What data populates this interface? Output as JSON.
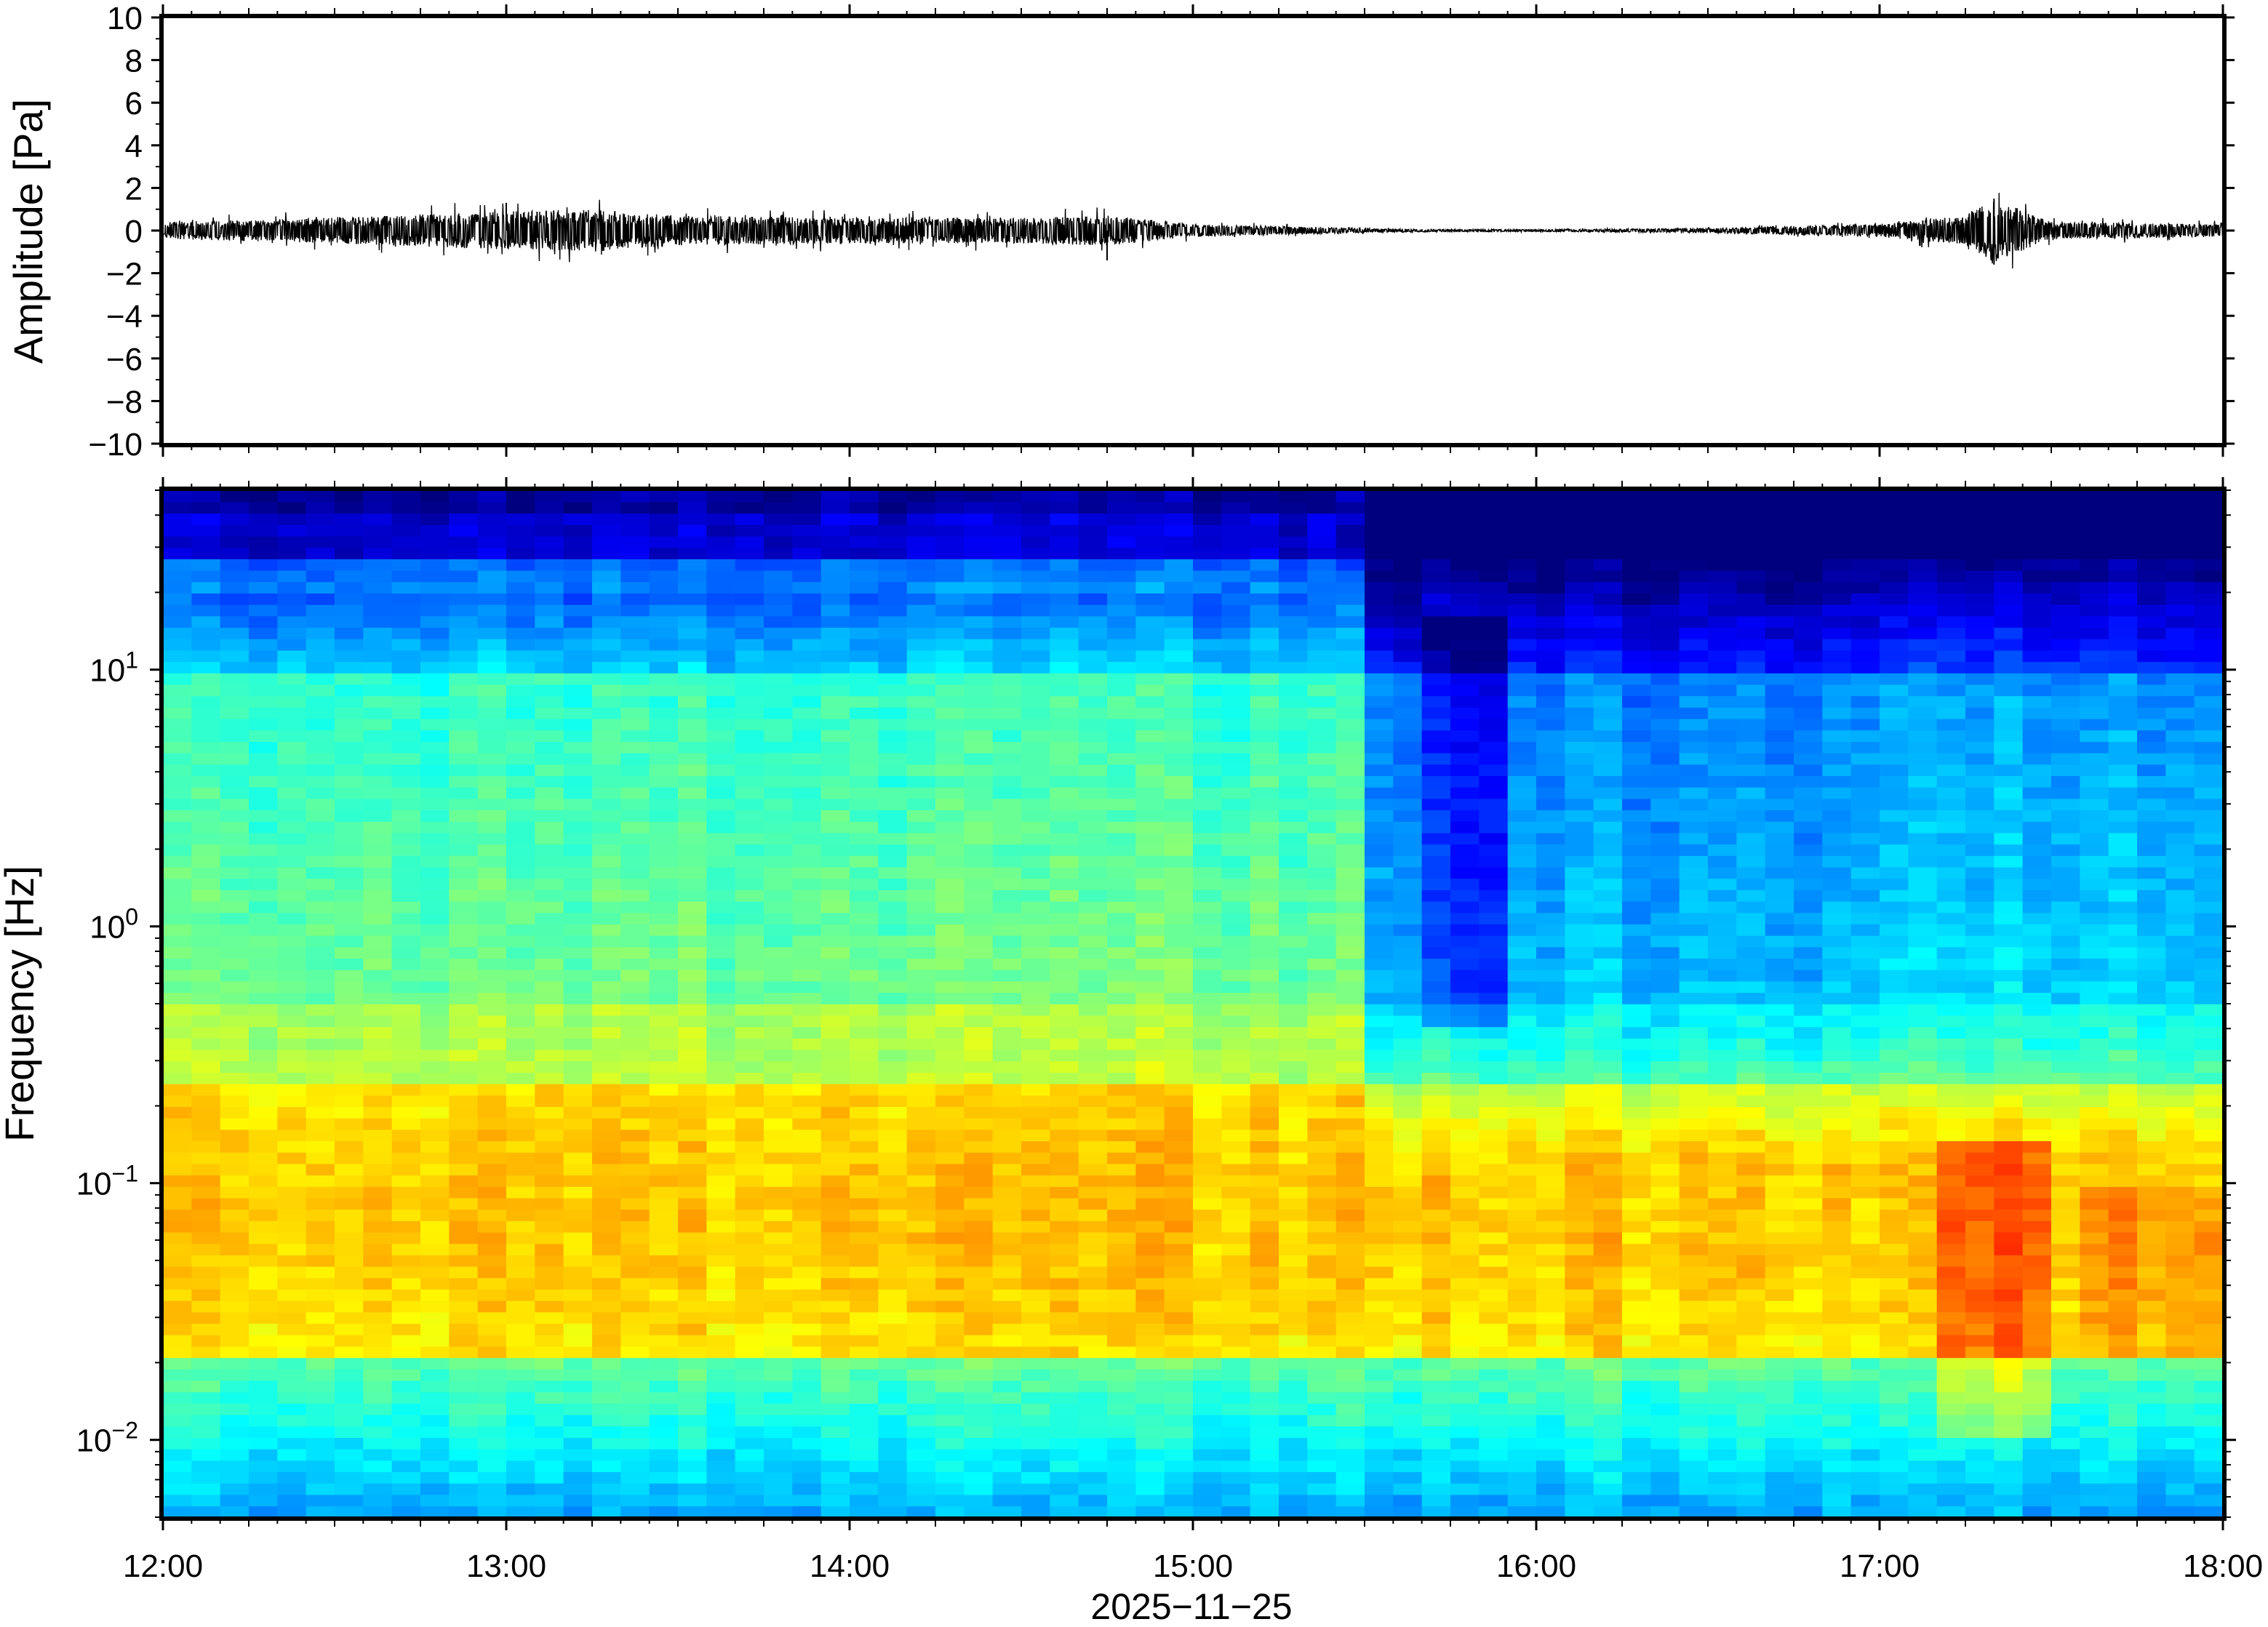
{
  "chart_data": [
    {
      "type": "line",
      "panel": "waveform",
      "ylabel": "Amplitude [Pa]",
      "ylim": [
        -10,
        10
      ],
      "yticks": [
        "10",
        "8",
        "6",
        "4",
        "2",
        "0",
        "−2",
        "−4",
        "−6",
        "−8",
        "−10"
      ],
      "ytick_values": [
        10,
        8,
        6,
        4,
        2,
        0,
        -2,
        -4,
        -6,
        -8,
        -10
      ],
      "xlim": [
        "12:00",
        "18:00"
      ],
      "series": [
        {
          "color": "#000000",
          "envelope_times": [
            "12:00",
            "12:30",
            "13:00",
            "13:15",
            "13:30",
            "14:00",
            "14:30",
            "14:45",
            "15:00",
            "15:30",
            "15:45",
            "16:00",
            "16:30",
            "17:00",
            "17:15",
            "17:20",
            "17:30",
            "18:00"
          ],
          "envelope_amplitude": [
            0.4,
            0.6,
            0.9,
            1.0,
            0.7,
            0.6,
            0.6,
            0.7,
            0.3,
            0.1,
            0.05,
            0.05,
            0.1,
            0.3,
            0.7,
            1.5,
            0.4,
            0.3
          ],
          "notable_peaks": [
            {
              "time": "13:00",
              "value": 1.3
            },
            {
              "time": "14:45",
              "value": -1.4
            },
            {
              "time": "17:20",
              "value": 1.5
            },
            {
              "time": "17:20",
              "value": -1.6
            }
          ]
        }
      ]
    },
    {
      "type": "heatmap",
      "panel": "spectrogram",
      "ylabel": "Frequency [Hz]",
      "xlabel": "2025−11−25",
      "yscale": "log",
      "ylim": [
        0.005,
        50
      ],
      "yticks": [
        {
          "value": 10,
          "base": "10",
          "exp": "1"
        },
        {
          "value": 1,
          "base": "10",
          "exp": "0"
        },
        {
          "value": 0.1,
          "base": "10",
          "exp": "−1"
        },
        {
          "value": 0.01,
          "base": "10",
          "exp": "−2"
        }
      ],
      "xticks": [
        "12:00",
        "13:00",
        "14:00",
        "15:00",
        "16:00",
        "17:00",
        "18:00"
      ],
      "xlim": [
        "12:00",
        "18:00"
      ],
      "colormap": "jet",
      "colormap_stops": [
        "#00007f",
        "#0000ff",
        "#007fff",
        "#00ffff",
        "#7fff7f",
        "#ffff00",
        "#ff7f00",
        "#ff0000"
      ],
      "features": [
        {
          "label": "broadband energy",
          "time_range": [
            "12:00",
            "15:30"
          ],
          "freq_range": [
            0.02,
            3
          ]
        },
        {
          "label": "quiet interval",
          "time_range": [
            "15:40",
            "16:00"
          ],
          "freq_range": [
            0.3,
            15
          ]
        },
        {
          "label": "low-frequency burst",
          "time_range": [
            "17:10",
            "17:30"
          ],
          "freq_range": [
            0.01,
            0.15
          ]
        }
      ]
    }
  ]
}
